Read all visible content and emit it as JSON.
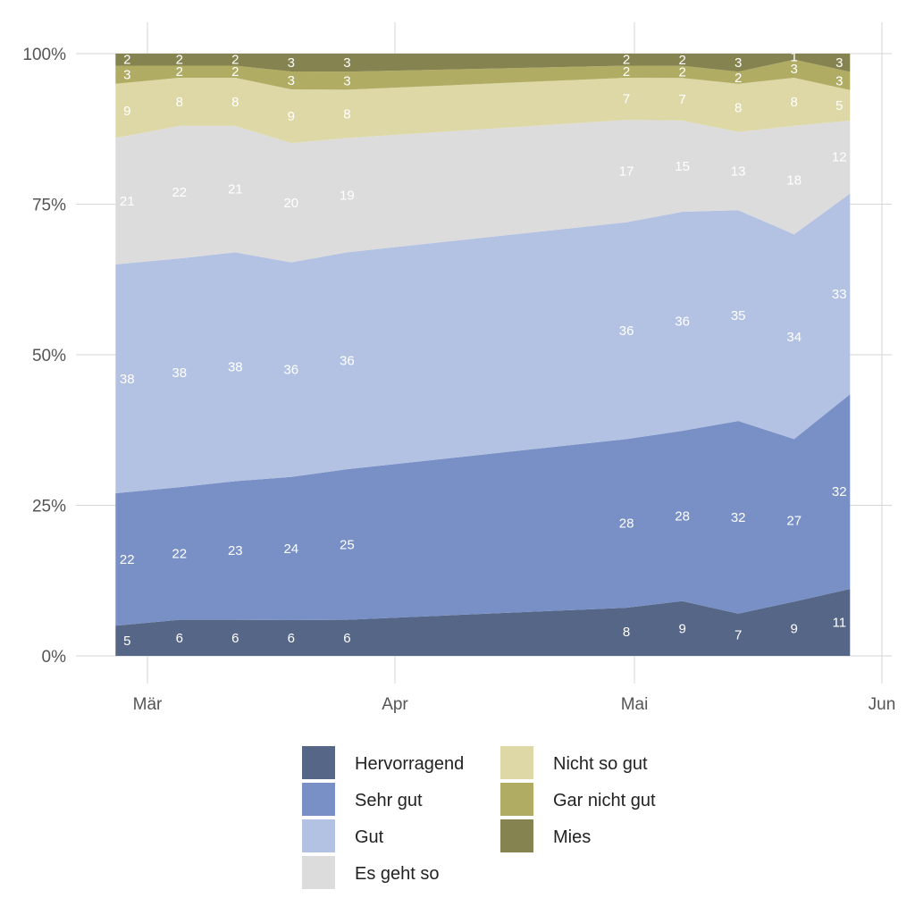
{
  "chart_data": {
    "type": "area",
    "stacked": "percent",
    "title": "",
    "xlabel": "",
    "ylabel": "",
    "x": [
      "2020-02-25",
      "2020-03-04",
      "2020-03-11",
      "2020-03-18",
      "2020-03-25",
      "2020-04-30",
      "2020-05-07",
      "2020-05-14",
      "2020-05-21",
      "2020-05-28"
    ],
    "x_day_offsets_from_mar1": [
      -4,
      4,
      11,
      18,
      25,
      60,
      67,
      74,
      81,
      88
    ],
    "x_ticks": [
      {
        "label": "Mär",
        "day": 0
      },
      {
        "label": "Apr",
        "day": 31
      },
      {
        "label": "Mai",
        "day": 61
      },
      {
        "label": "Jun",
        "day": 92
      }
    ],
    "y_ticks": [
      {
        "label": "0%",
        "value": 0
      },
      {
        "label": "25%",
        "value": 25
      },
      {
        "label": "50%",
        "value": 50
      },
      {
        "label": "75%",
        "value": 75
      },
      {
        "label": "100%",
        "value": 100
      }
    ],
    "ylim": [
      0,
      100
    ],
    "grid": true,
    "legend_position": "bottom",
    "series": [
      {
        "name": "Hervorragend",
        "color": "#566686",
        "values": [
          5,
          6,
          6,
          6,
          6,
          8,
          9,
          7,
          9,
          11
        ]
      },
      {
        "name": "Sehr gut",
        "color": "#7890C6",
        "values": [
          22,
          22,
          23,
          24,
          25,
          28,
          28,
          32,
          27,
          32
        ]
      },
      {
        "name": "Gut",
        "color": "#B3C2E3",
        "values": [
          38,
          38,
          38,
          36,
          36,
          36,
          36,
          35,
          34,
          33
        ]
      },
      {
        "name": "Es geht so",
        "color": "#DCDCDC",
        "values": [
          21,
          22,
          21,
          20,
          19,
          17,
          15,
          13,
          18,
          12
        ]
      },
      {
        "name": "Nicht so gut",
        "color": "#DDD8A5",
        "values": [
          9,
          8,
          8,
          9,
          8,
          7,
          7,
          8,
          8,
          5
        ]
      },
      {
        "name": "Gar nicht gut",
        "color": "#B1AC63",
        "values": [
          3,
          2,
          2,
          3,
          3,
          2,
          2,
          2,
          3,
          3
        ]
      },
      {
        "name": "Mies",
        "color": "#85834F",
        "values": [
          2,
          2,
          2,
          3,
          3,
          2,
          2,
          3,
          1,
          3
        ]
      }
    ]
  }
}
